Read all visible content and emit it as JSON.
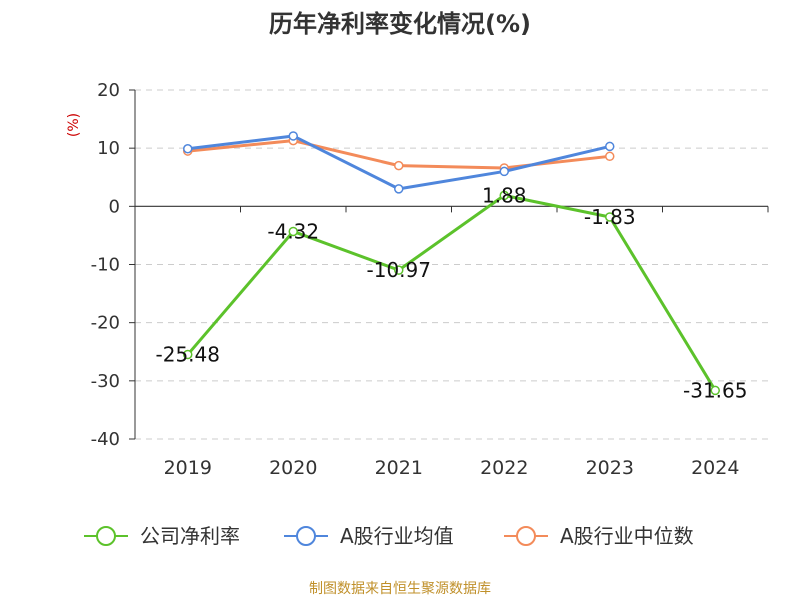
{
  "chart_data": {
    "type": "line",
    "title": "历年净利率变化情况(%)",
    "ylabel": "(%)",
    "xlabel": "",
    "categories": [
      "2019",
      "2020",
      "2021",
      "2022",
      "2023",
      "2024"
    ],
    "ylim": [
      -40,
      20
    ],
    "yticks": [
      20,
      10,
      0,
      -10,
      -20,
      -30,
      -40
    ],
    "grid": true,
    "legend_position": "bottom",
    "series": [
      {
        "name": "公司净利率",
        "color": "#5cc22b",
        "values": [
          -25.48,
          -4.32,
          -10.97,
          1.88,
          -1.83,
          -31.65
        ],
        "labels": [
          "-25.48",
          "-4.32",
          "-10.97",
          "1.88",
          "-1.83",
          "-31.65"
        ]
      },
      {
        "name": "A股行业均值",
        "color": "#4f86dc",
        "values": [
          9.9,
          12.1,
          3.0,
          6.0,
          10.3,
          null
        ]
      },
      {
        "name": "A股行业中位数",
        "color": "#f38b5a",
        "values": [
          9.5,
          11.3,
          7.0,
          6.6,
          8.6,
          null
        ]
      }
    ]
  },
  "footer": "制图数据来自恒生聚源数据库"
}
